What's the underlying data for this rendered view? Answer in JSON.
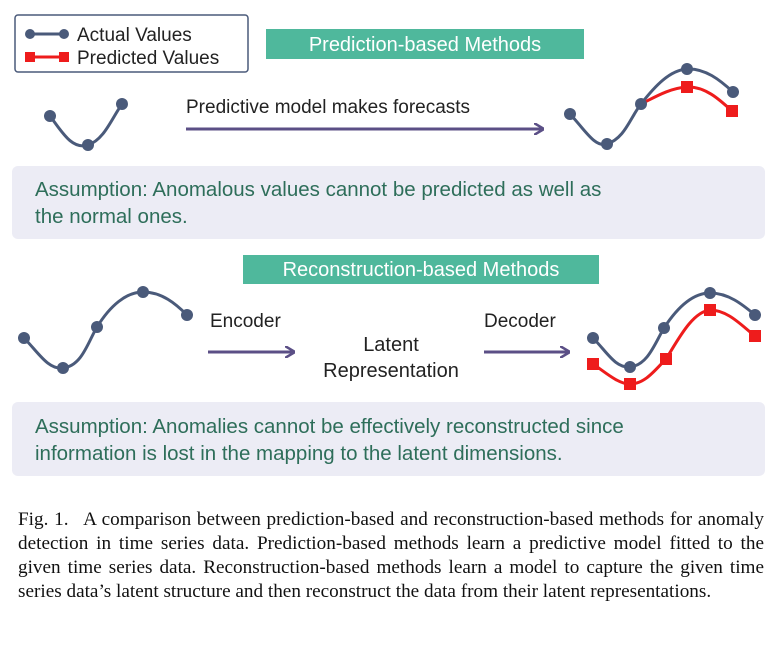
{
  "legend": {
    "actual_label": "Actual Values",
    "predicted_label": "Predicted Values"
  },
  "colors": {
    "actual": "#4a5a7a",
    "predicted": "#ee1c1c",
    "banner": "#4fb89c",
    "arrow": "#5b4f86",
    "assumption_bg": "#ececf5",
    "assumption_text": "#2e6e5a"
  },
  "prediction": {
    "title": "Prediction-based Methods",
    "arrow_label": "Predictive model makes forecasts",
    "assumption_line1": "Assumption: Anomalous values cannot be predicted as well as",
    "assumption_line2": "the normal ones."
  },
  "reconstruction": {
    "title": "Reconstruction-based Methods",
    "encoder_label": "Encoder",
    "latent_line1": "Latent",
    "latent_line2": "Representation",
    "decoder_label": "Decoder",
    "assumption_line1": "Assumption: Anomalies cannot be effectively reconstructed since",
    "assumption_line2": "information is lost in the mapping to the latent dimensions."
  },
  "caption": {
    "figure_label": "Fig. 1.",
    "text": "A comparison between prediction-based and reconstruction-based methods for anomaly detection in time series data. Prediction-based methods learn a predictive model fitted to the given time series data. Reconstruction-based methods learn a model to capture the given time series data’s latent structure and then reconstruct the data from their latent representations."
  }
}
